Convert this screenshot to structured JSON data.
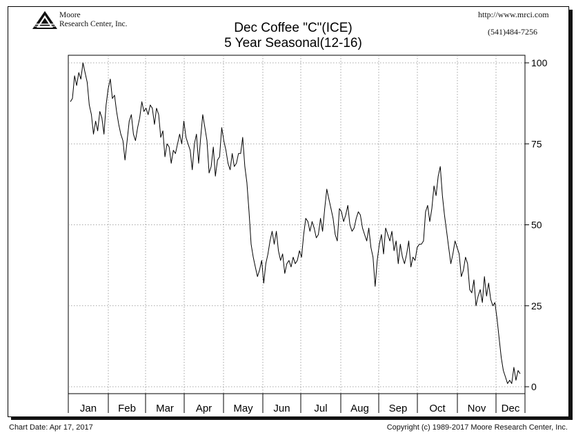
{
  "header": {
    "company": "Moore\nResearch Center, Inc.",
    "company_line1": "Moore",
    "company_line2": "Research Center, Inc.",
    "url": "http://www.mrci.com",
    "phone": "(541)484-7256"
  },
  "footer": {
    "chart_date": "Chart Date: Apr 17, 2017",
    "copyright": "Copyright (c) 1989-2017 Moore Research Center, Inc."
  },
  "colors": {
    "line": "#000000",
    "grid": "#8a8a8a",
    "background": "#ffffff"
  },
  "logo_icon": "moore-triangle-logo",
  "chart_data": {
    "type": "line",
    "title": "Dec Coffee \"C\"(ICE)",
    "subtitle": "5 Year Seasonal(12-16)",
    "xlabel": "",
    "ylabel": "",
    "ylim": [
      0,
      100
    ],
    "yticks": [
      0,
      25,
      50,
      75,
      100
    ],
    "ytick_labels": [
      "0",
      "25",
      "50",
      "75",
      "100"
    ],
    "months": [
      "Jan",
      "Feb",
      "Mar",
      "Apr",
      "May",
      "Jun",
      "Jul",
      "Aug",
      "Sep",
      "Oct",
      "Nov",
      "Dec"
    ],
    "grid": true,
    "series": [
      {
        "values": [
          88,
          89,
          96,
          93,
          97,
          95,
          100,
          97,
          94,
          87,
          84,
          78,
          82,
          79,
          85,
          83,
          78,
          87,
          92,
          95,
          89,
          90,
          85,
          81,
          78,
          76,
          70,
          76,
          82,
          84,
          78,
          76,
          80,
          83,
          88,
          85,
          86,
          84,
          87,
          86,
          81,
          86,
          84,
          77,
          79,
          71,
          75,
          74,
          69,
          73,
          72,
          75,
          78,
          75,
          82,
          77,
          75,
          73,
          67,
          75,
          78,
          69,
          77,
          84,
          80,
          76,
          66,
          68,
          74,
          65,
          70,
          71,
          80,
          76,
          73,
          69,
          67,
          72,
          68,
          69,
          72,
          72,
          77,
          68,
          63,
          54,
          44,
          40,
          37,
          34,
          36,
          39,
          32,
          38,
          41,
          45,
          48,
          44,
          48,
          42,
          39,
          41,
          35,
          38,
          39,
          37,
          40,
          38,
          39,
          42,
          40,
          47,
          52,
          51,
          48,
          51,
          49,
          46,
          47,
          52,
          48,
          55,
          61,
          58,
          55,
          52,
          47,
          45,
          55,
          54,
          51,
          53,
          56,
          50,
          48,
          49,
          52,
          54,
          53,
          49,
          47,
          45,
          49,
          43,
          40,
          31,
          39,
          44,
          47,
          41,
          49,
          47,
          45,
          48,
          42,
          45,
          38,
          44,
          40,
          38,
          41,
          45,
          37,
          40,
          39,
          43,
          44,
          44,
          45,
          54,
          56,
          51,
          55,
          62,
          59,
          65,
          68,
          59,
          53,
          48,
          43,
          38,
          41,
          45,
          43,
          41,
          34,
          36,
          40,
          38,
          30,
          29,
          33,
          25,
          28,
          30,
          26,
          34,
          28,
          32,
          27,
          25,
          26,
          21,
          15,
          9,
          5,
          3,
          1,
          2,
          1,
          6,
          2,
          5,
          4
        ]
      }
    ]
  }
}
